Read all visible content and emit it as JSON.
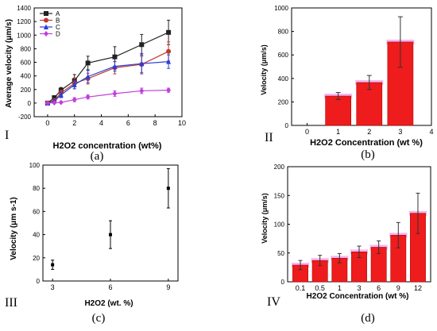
{
  "figure": {
    "panels": [
      {
        "roman": "I",
        "letter": "(a)"
      },
      {
        "roman": "II",
        "letter": "(b)"
      },
      {
        "roman": "III",
        "letter": "(c)"
      },
      {
        "roman": "IV",
        "letter": "(d)"
      }
    ]
  },
  "chart_data": [
    {
      "type": "line",
      "panel": "a",
      "title": "",
      "xlabel": "H2O2 concentration (wt%)",
      "ylabel": "Average velocity (μm/s)",
      "xlim": [
        -1,
        10
      ],
      "ylim": [
        -200,
        1400
      ],
      "xticks": [
        0,
        2,
        4,
        6,
        8,
        10
      ],
      "yticks": [
        -200,
        0,
        200,
        400,
        600,
        800,
        1000,
        1200,
        1400
      ],
      "x": [
        0,
        0.5,
        1,
        2,
        3,
        5,
        7,
        9
      ],
      "legend_position": "top-left",
      "series": [
        {
          "name": "A",
          "color": "#222222",
          "marker": "square",
          "values": [
            0,
            80,
            190,
            330,
            590,
            680,
            860,
            1040
          ],
          "errors": [
            10,
            30,
            40,
            90,
            100,
            150,
            150,
            180
          ]
        },
        {
          "name": "B",
          "color": "#c0392b",
          "marker": "circle",
          "values": [
            0,
            40,
            150,
            290,
            360,
            520,
            570,
            760
          ],
          "errors": [
            10,
            20,
            40,
            80,
            80,
            90,
            120,
            140
          ]
        },
        {
          "name": "C",
          "color": "#2a3fd6",
          "marker": "triangle",
          "values": [
            0,
            30,
            120,
            270,
            390,
            540,
            580,
            610
          ],
          "errors": [
            10,
            20,
            40,
            60,
            90,
            70,
            150,
            100
          ]
        },
        {
          "name": "D",
          "color": "#c13fdc",
          "marker": "diamond",
          "values": [
            0,
            5,
            10,
            50,
            90,
            140,
            180,
            190
          ],
          "errors": [
            5,
            5,
            10,
            30,
            30,
            40,
            40,
            30
          ]
        }
      ]
    },
    {
      "type": "bar",
      "panel": "b",
      "title": "",
      "xlabel": "H2O2 Concentration (wt %)",
      "ylabel": "Velocity (μm/s)",
      "xlim": [
        -0.5,
        4
      ],
      "ylim": [
        0,
        1000
      ],
      "xticks": [
        0,
        1,
        2,
        3,
        4
      ],
      "yticks": [
        0,
        200,
        400,
        600,
        800,
        1000
      ],
      "categories": [
        1,
        2,
        3
      ],
      "values": [
        250,
        365,
        710
      ],
      "errors": [
        30,
        60,
        215
      ],
      "bar_color": "#ee1c1c"
    },
    {
      "type": "scatter",
      "panel": "c",
      "title": "",
      "xlabel": "H2O2 (wt. %)",
      "ylabel": "Velocity (μm s-1)",
      "xlim": [
        2.5,
        9.5
      ],
      "ylim": [
        0,
        100
      ],
      "xticks": [
        3,
        6,
        9
      ],
      "yticks": [
        0,
        20,
        40,
        60,
        80,
        100
      ],
      "x": [
        3,
        6,
        9
      ],
      "values": [
        14,
        40,
        80
      ],
      "errors": [
        4,
        12,
        17
      ]
    },
    {
      "type": "bar",
      "panel": "d",
      "title": "",
      "xlabel": "H2O2 Concentration (wt %)",
      "ylabel": "Velocity (μm/s)",
      "ylim": [
        0,
        200
      ],
      "yticks": [
        0,
        50,
        100,
        150,
        200
      ],
      "categories": [
        "0.1",
        "0.5",
        "1",
        "3",
        "6",
        "9",
        "12"
      ],
      "values": [
        29,
        37,
        41,
        52,
        60,
        81,
        119
      ],
      "errors": [
        8,
        9,
        8,
        10,
        11,
        22,
        35
      ],
      "bar_color": "#ee1c1c"
    }
  ]
}
